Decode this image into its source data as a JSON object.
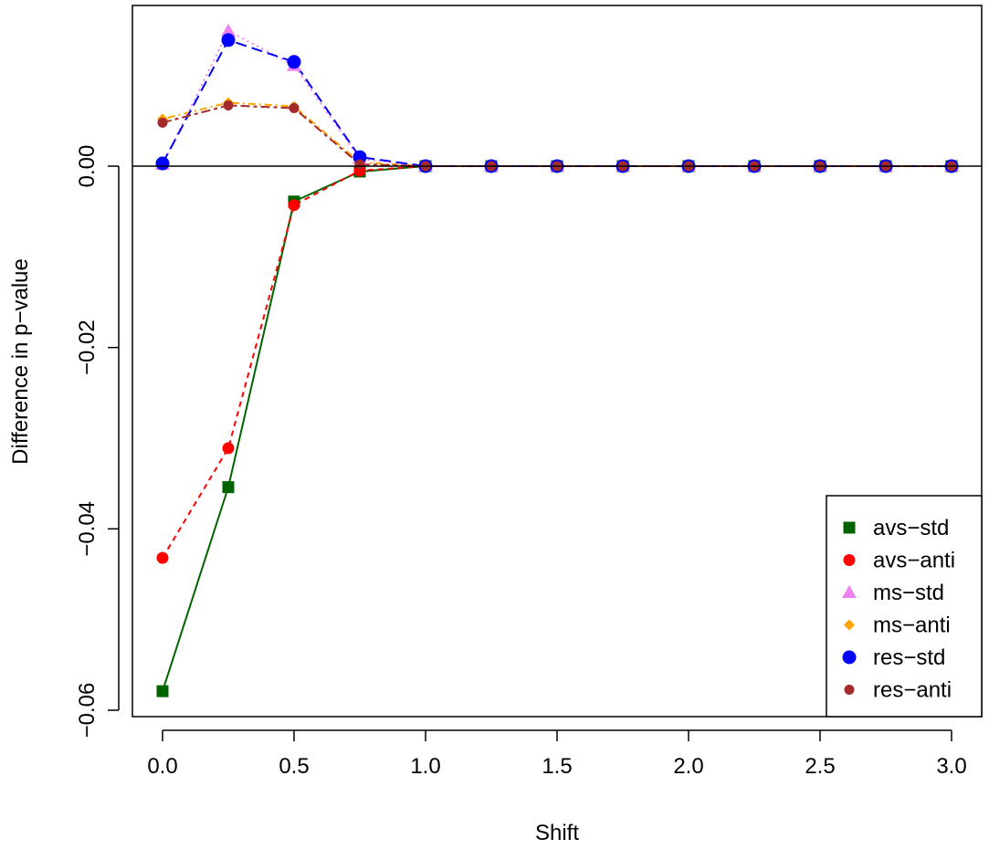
{
  "chart_data": {
    "type": "line",
    "title": "",
    "xlabel": "Shift",
    "ylabel": "Difference in p−value",
    "xlim": [
      0,
      3
    ],
    "ylim": [
      -0.06,
      0.016
    ],
    "x_ticks": [
      {
        "value": 0.0,
        "label": "0.0"
      },
      {
        "value": 0.5,
        "label": "0.5"
      },
      {
        "value": 1.0,
        "label": "1.0"
      },
      {
        "value": 1.5,
        "label": "1.5"
      },
      {
        "value": 2.0,
        "label": "2.0"
      },
      {
        "value": 2.5,
        "label": "2.5"
      },
      {
        "value": 3.0,
        "label": "3.0"
      }
    ],
    "y_ticks": [
      {
        "value": -0.06,
        "label": "−0.06"
      },
      {
        "value": -0.04,
        "label": "−0.04"
      },
      {
        "value": -0.02,
        "label": "−0.02"
      },
      {
        "value": 0.0,
        "label": "0.00"
      }
    ],
    "reference_line_y": 0,
    "grid": false,
    "legend_position": "bottom-right",
    "x": [
      0,
      0.25,
      0.5,
      0.75,
      1.0,
      1.25,
      1.5,
      1.75,
      2.0,
      2.25,
      2.5,
      2.75,
      3.0
    ],
    "series": [
      {
        "name": "avs−std",
        "color": "#006400",
        "marker": "square",
        "line": "solid",
        "values": [
          -0.0579,
          -0.0354,
          -0.0039,
          -0.0006,
          0,
          0,
          0,
          0,
          0,
          0,
          0,
          0,
          0
        ]
      },
      {
        "name": "avs−anti",
        "color": "#ff0000",
        "marker": "circle",
        "line": "dashed",
        "values": [
          -0.0432,
          -0.0311,
          -0.0043,
          -0.0005,
          0,
          0,
          0,
          0,
          0,
          0,
          0,
          0,
          0
        ]
      },
      {
        "name": "ms−std",
        "color": "#ee82ee",
        "marker": "triangle",
        "line": "dotted",
        "values": [
          0.0002,
          0.0149,
          0.0111,
          0.0008,
          0,
          0,
          0,
          0,
          0,
          0,
          0,
          0,
          0
        ]
      },
      {
        "name": "ms−anti",
        "color": "#ffa500",
        "marker": "diamond",
        "line": "dotdash",
        "values": [
          0.0052,
          0.007,
          0.0066,
          0.0004,
          0,
          0,
          0,
          0,
          0,
          0,
          0,
          0,
          0
        ]
      },
      {
        "name": "res−std",
        "color": "#0000ff",
        "marker": "circle-large",
        "line": "longdash",
        "values": [
          0.0003,
          0.0139,
          0.0115,
          0.001,
          0,
          0,
          0,
          0,
          0,
          0,
          0,
          0,
          0
        ]
      },
      {
        "name": "res−anti",
        "color": "#a52a2a",
        "marker": "circle-small",
        "line": "twodash",
        "values": [
          0.0048,
          0.0067,
          0.0064,
          0.0002,
          0,
          0,
          0,
          0,
          0,
          0,
          0,
          0,
          0
        ]
      }
    ]
  }
}
